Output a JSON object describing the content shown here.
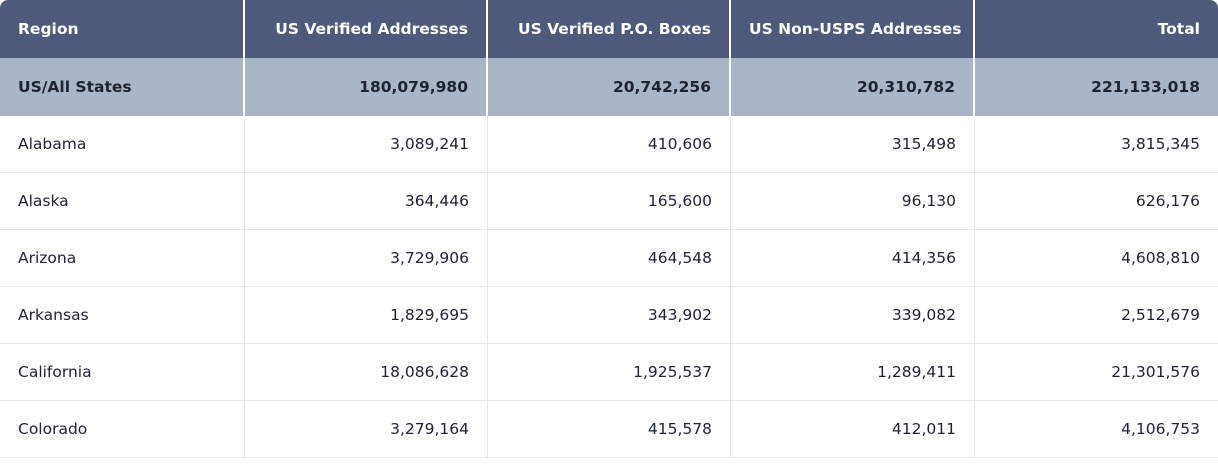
{
  "table": {
    "headers": [
      "Region",
      "US Verified Addresses",
      "US Verified P.O. Boxes",
      "US Non-USPS Addresses",
      "Total"
    ],
    "summary": [
      "US/All States",
      "180,079,980",
      "20,742,256",
      "20,310,782",
      "221,133,018"
    ],
    "rows": [
      [
        "Alabama",
        "3,089,241",
        "410,606",
        "315,498",
        "3,815,345"
      ],
      [
        "Alaska",
        "364,446",
        "165,600",
        "96,130",
        "626,176"
      ],
      [
        "Arizona",
        "3,729,906",
        "464,548",
        "414,356",
        "4,608,810"
      ],
      [
        "Arkansas",
        "1,829,695",
        "343,902",
        "339,082",
        "2,512,679"
      ],
      [
        "California",
        "18,086,628",
        "1,925,537",
        "1,289,411",
        "21,301,576"
      ],
      [
        "Colorado",
        "3,279,164",
        "415,578",
        "412,011",
        "4,106,753"
      ]
    ]
  }
}
